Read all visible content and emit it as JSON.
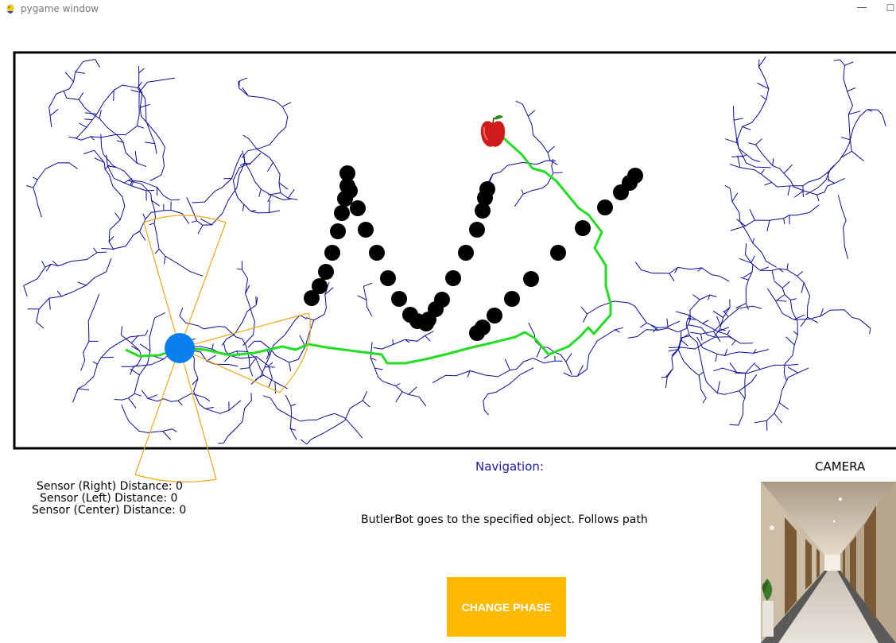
{
  "window": {
    "title": "pygame window",
    "minimize_glyph": "—",
    "maximize_glyph": "☐",
    "app_icon": "pygame-snake-icon"
  },
  "sensors": {
    "right": "Sensor (Right) Distance: 0",
    "left": "Sensor (Left) Distance: 0",
    "center": "Sensor (Center) Distance: 0"
  },
  "navigation": {
    "label": "Navigation:",
    "description": "ButlerBot goes to the specified object. Follows path"
  },
  "camera": {
    "label": "CAMERA",
    "scene": "hotel-corridor"
  },
  "buttons": {
    "change_phase": "CHANGE PHASE"
  },
  "colors": {
    "robot": "#0a7ff0",
    "obstacle": "#000000",
    "rrt_tree": "#0b0b9c",
    "path": "#22dd22",
    "sensor_cone": "#f0a818",
    "button": "#fdba00",
    "navigation_text": "#1a1aa6"
  },
  "icons": {
    "goal": "apple-icon",
    "robot": "robot-circle"
  }
}
